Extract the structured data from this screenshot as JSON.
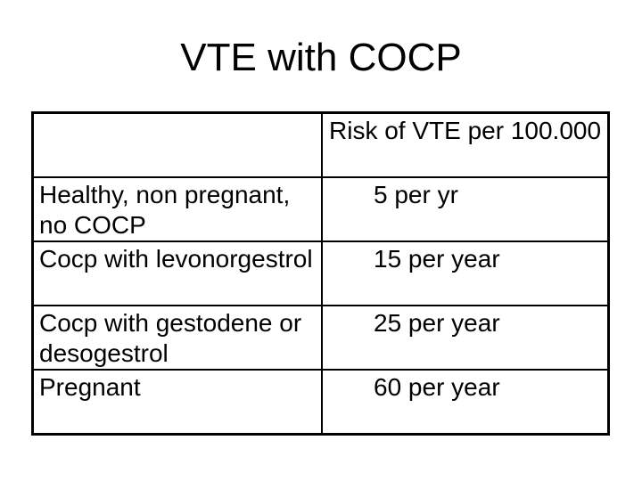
{
  "slide": {
    "title": "VTE with COCP",
    "background_color": "#ffffff",
    "text_color": "#000000",
    "border_color": "#000000"
  },
  "table": {
    "header": {
      "col1": "",
      "col2": "Risk of VTE per 100.000"
    },
    "rows": [
      {
        "label": "Healthy, non pregnant,\nno COCP",
        "value": "5 per yr"
      },
      {
        "label": "Cocp with levonorgestrol",
        "value": "15 per year"
      },
      {
        "label": "Cocp with gestodene or\ndesogestrol",
        "value": "25 per year"
      },
      {
        "label": "Pregnant",
        "value": "60 per year"
      }
    ]
  },
  "chart_data": {
    "type": "table",
    "title": "VTE with COCP",
    "columns": [
      "",
      "Risk of VTE per 100.000"
    ],
    "rows": [
      [
        "Healthy, non pregnant, no COCP",
        "5 per yr"
      ],
      [
        "Cocp with levonorgestrol",
        "15 per year"
      ],
      [
        "Cocp with gestodene or desogestrol",
        "25 per year"
      ],
      [
        "Pregnant",
        "60 per year"
      ]
    ]
  }
}
